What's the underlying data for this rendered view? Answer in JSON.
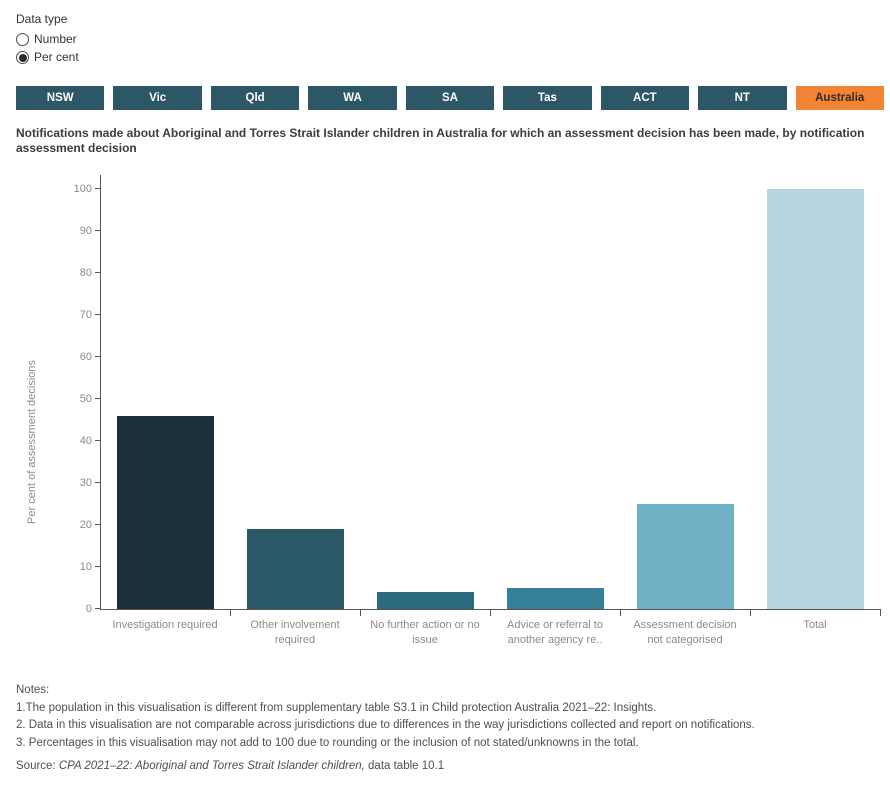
{
  "datatype": {
    "label": "Data type",
    "options": [
      {
        "label": "Number",
        "selected": false
      },
      {
        "label": "Per cent",
        "selected": true
      }
    ]
  },
  "tabs": {
    "items": [
      {
        "label": "NSW",
        "selected": false
      },
      {
        "label": "Vic",
        "selected": false
      },
      {
        "label": "Qld",
        "selected": false
      },
      {
        "label": "WA",
        "selected": false
      },
      {
        "label": "SA",
        "selected": false
      },
      {
        "label": "Tas",
        "selected": false
      },
      {
        "label": "ACT",
        "selected": false
      },
      {
        "label": "NT",
        "selected": false
      },
      {
        "label": "Australia",
        "selected": true
      }
    ],
    "colors": {
      "default_bg": "#2d5766",
      "default_text": "#ffffff",
      "selected_bg": "#f28433",
      "selected_text": "#332a22"
    }
  },
  "title": "Notifications made about Aboriginal and Torres Strait Islander children in Australia for which an assessment decision has been made, by notification assessment decision",
  "chart_data": {
    "type": "bar",
    "title": "Notifications made about Aboriginal and Torres Strait Islander children in Australia for which an assessment decision has been made, by notification assessment decision",
    "xlabel": "",
    "ylabel": "Per cent of assessment decisions",
    "ylim": [
      0,
      100
    ],
    "yticks": [
      0,
      10,
      20,
      30,
      40,
      50,
      60,
      70,
      80,
      90,
      100
    ],
    "grid": false,
    "legend_position": "none",
    "categories": [
      "Investigation required",
      "Other involvement required",
      "No further action or no issue",
      "Advice or referral to another agency re..",
      "Assessment decision not categorised",
      "Total"
    ],
    "values": [
      46,
      19,
      4,
      5,
      25,
      100
    ],
    "bar_colors": [
      "#1b2f3a",
      "#2b5968",
      "#2b6b7d",
      "#35819a",
      "#6fb0c5",
      "#b7d5e1"
    ],
    "axis_color": "#555555",
    "tick_label_color": "#8a8a8a"
  },
  "notes": {
    "heading": "Notes:",
    "items": [
      "1.The population in this visualisation is different from supplementary table S3.1 in Child protection Australia 2021–22: Insights.",
      "2. Data in this visualisation are not comparable across jurisdictions due to differences in the way jurisdictions collected and report on notifications.",
      "3. Percentages in this visualisation may not add to 100 due to rounding or the inclusion of not stated/unknowns in the total."
    ]
  },
  "source": {
    "prefix": "Source: ",
    "italic": "CPA 2021–22: Aboriginal and Torres Strait Islander children,",
    "suffix": " data table 10.1"
  }
}
